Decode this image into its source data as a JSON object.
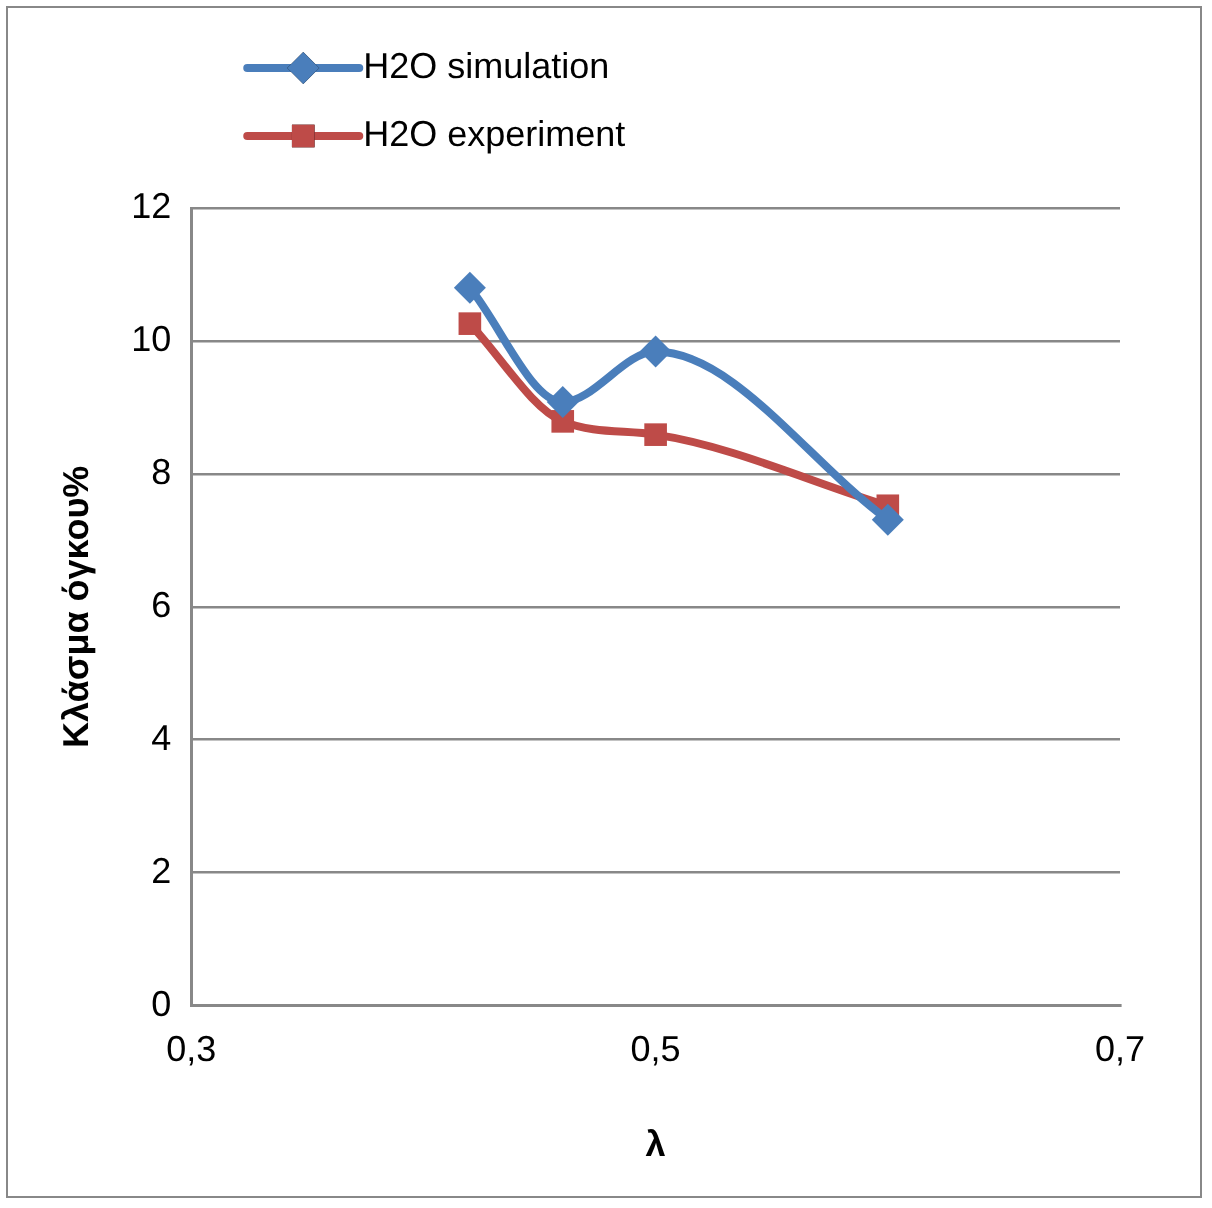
{
  "chart_data": {
    "type": "line",
    "xlabel": "λ",
    "ylabel": "Κλάσμα όγκου%",
    "xlim": [
      0.3,
      0.7
    ],
    "xticks": [
      {
        "value": 0.3,
        "label": "0,3"
      },
      {
        "value": 0.5,
        "label": "0,5"
      },
      {
        "value": 0.7,
        "label": "0,7"
      }
    ],
    "ylim": [
      0,
      12
    ],
    "yticks": [
      0,
      2,
      4,
      6,
      8,
      10,
      12
    ],
    "grid": "y",
    "legend": "top left",
    "series": [
      {
        "name": "H2O simulation",
        "color": "#4a7ebb",
        "marker": "diamond",
        "x": [
          0.42,
          0.46,
          0.5,
          0.6
        ],
        "values": [
          10.8,
          9.08,
          9.84,
          7.31
        ]
      },
      {
        "name": "H2O experiment",
        "color": "#be4b48",
        "marker": "square",
        "x": [
          0.42,
          0.46,
          0.5,
          0.6
        ],
        "values": [
          10.26,
          8.79,
          8.59,
          7.52
        ]
      }
    ]
  }
}
